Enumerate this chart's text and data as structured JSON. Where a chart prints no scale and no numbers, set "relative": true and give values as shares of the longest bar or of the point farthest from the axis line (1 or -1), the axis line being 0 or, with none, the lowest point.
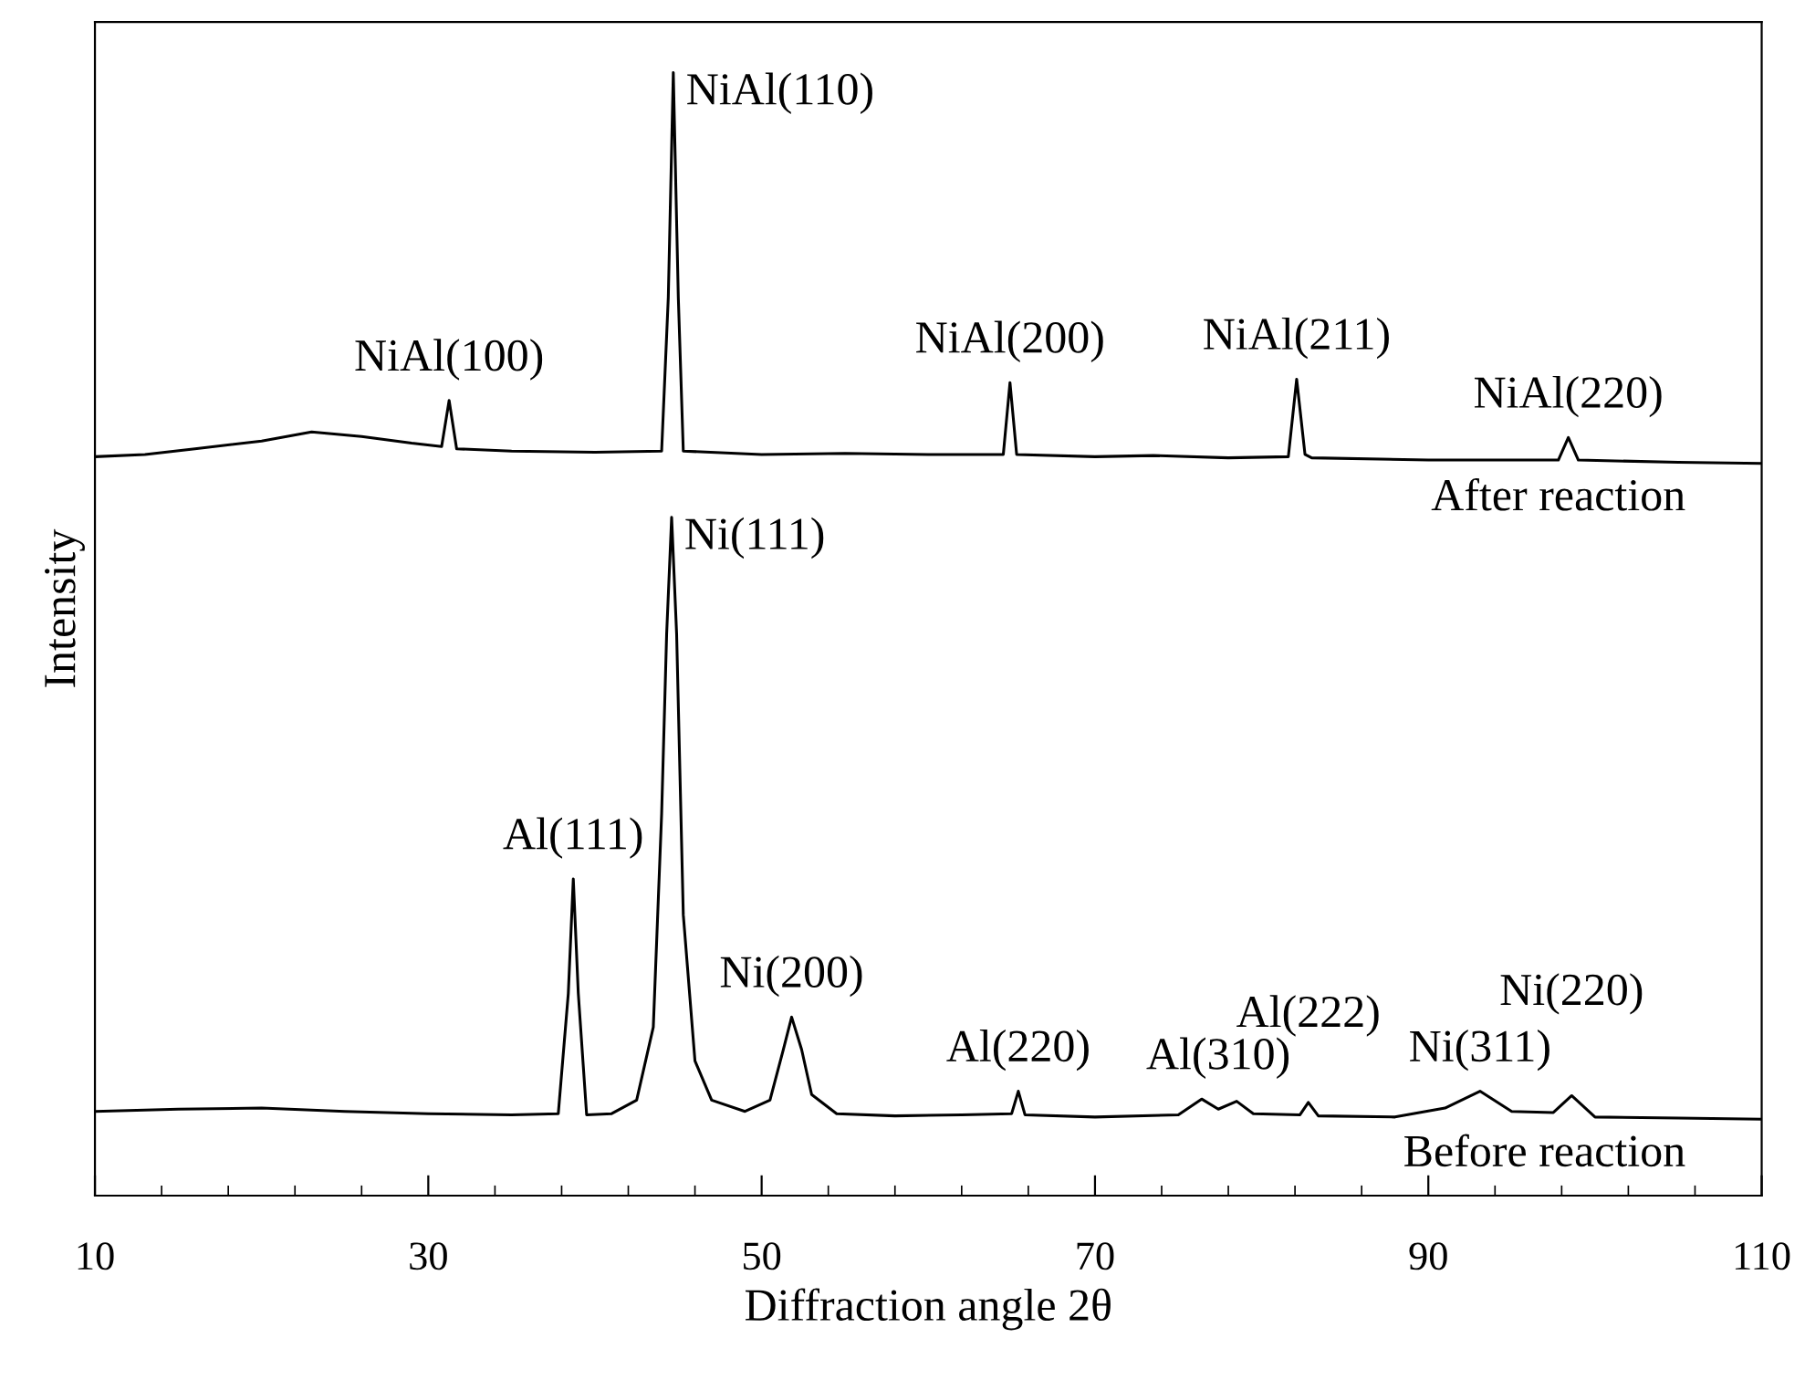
{
  "chart_data": {
    "type": "line",
    "relative": true,
    "xlabel": "Diffraction angle 2θ",
    "ylabel": "Intensity",
    "xlim": [
      10,
      110
    ],
    "xticks": [
      10,
      {
        "value": 14,
        "label": null
      },
      {
        "value": 18,
        "label": null
      },
      {
        "value": 22,
        "label": null
      },
      {
        "value": 26,
        "label": null
      },
      30,
      {
        "value": 34,
        "label": null
      },
      {
        "value": 38,
        "label": null
      },
      {
        "value": 42,
        "label": null
      },
      {
        "value": 46,
        "label": null
      },
      50,
      {
        "value": 54,
        "label": null
      },
      {
        "value": 58,
        "label": null
      },
      {
        "value": 62,
        "label": null
      },
      {
        "value": 66,
        "label": null
      },
      70,
      {
        "value": 74,
        "label": null
      },
      {
        "value": 78,
        "label": null
      },
      {
        "value": 82,
        "label": null
      },
      {
        "value": 86,
        "label": null
      },
      90,
      {
        "value": 94,
        "label": null
      },
      {
        "value": 98,
        "label": null
      },
      {
        "value": 102,
        "label": null
      },
      {
        "value": 106,
        "label": null
      },
      110
    ],
    "tick_labels": "x",
    "grid": false,
    "legend": false,
    "marker": "none",
    "line_style": "solid",
    "series": [
      {
        "name": "After reaction",
        "color": "#000000",
        "x": [
          10,
          13,
          16,
          20,
          23,
          26,
          29,
          30.8,
          31.25,
          31.7,
          35,
          40,
          44.0,
          44.4,
          44.7,
          45.0,
          45.3,
          50,
          55,
          60,
          64.5,
          64.9,
          65.3,
          70,
          73.5,
          78,
          81.6,
          82.1,
          82.6,
          83.0,
          90,
          97.8,
          98.4,
          99.0,
          105,
          110
        ],
        "values": [
          0.658,
          0.66,
          0.665,
          0.672,
          0.68,
          0.676,
          0.67,
          0.667,
          0.708,
          0.665,
          0.663,
          0.662,
          0.663,
          0.8,
          1.0,
          0.8,
          0.663,
          0.66,
          0.661,
          0.66,
          0.66,
          0.724,
          0.66,
          0.658,
          0.659,
          0.657,
          0.658,
          0.727,
          0.66,
          0.657,
          0.655,
          0.655,
          0.675,
          0.655,
          0.653,
          0.652
        ]
      },
      {
        "name": "Before reaction",
        "color": "#000000",
        "x": [
          10,
          15,
          20,
          25,
          30,
          35,
          37.8,
          38.4,
          38.7,
          39.0,
          39.5,
          41,
          42.5,
          43.5,
          44.0,
          44.3,
          44.6,
          44.9,
          45.3,
          46,
          47,
          49,
          50.5,
          51.3,
          51.8,
          52.4,
          53,
          54.5,
          58,
          62,
          65.0,
          65.4,
          65.8,
          70,
          75,
          76.4,
          77.4,
          78.5,
          79.5,
          82.3,
          82.8,
          83.4,
          88,
          91,
          93.1,
          95,
          97.5,
          98.6,
          100,
          105,
          110
        ],
        "values": [
          0.075,
          0.077,
          0.078,
          0.075,
          0.073,
          0.072,
          0.073,
          0.18,
          0.282,
          0.18,
          0.072,
          0.073,
          0.085,
          0.15,
          0.34,
          0.5,
          0.604,
          0.5,
          0.25,
          0.12,
          0.085,
          0.075,
          0.085,
          0.13,
          0.159,
          0.13,
          0.09,
          0.073,
          0.071,
          0.072,
          0.073,
          0.093,
          0.072,
          0.07,
          0.072,
          0.086,
          0.077,
          0.084,
          0.073,
          0.072,
          0.083,
          0.071,
          0.07,
          0.078,
          0.093,
          0.075,
          0.074,
          0.089,
          0.07,
          0.069,
          0.068
        ]
      }
    ],
    "annotations": [
      {
        "text": "NiAl(100)",
        "x": 31.25,
        "y": 0.708
      },
      {
        "text": "NiAl(110)",
        "x": 44.7,
        "y": 1.0
      },
      {
        "text": "NiAl(200)",
        "x": 64.9,
        "y": 0.724
      },
      {
        "text": "NiAl(211)",
        "x": 82.1,
        "y": 0.727
      },
      {
        "text": "NiAl(220)",
        "x": 98.4,
        "y": 0.675
      },
      {
        "text": "Al(111)",
        "x": 38.7,
        "y": 0.282
      },
      {
        "text": "Ni(111)",
        "x": 44.6,
        "y": 0.604
      },
      {
        "text": "Ni(200)",
        "x": 51.8,
        "y": 0.159
      },
      {
        "text": "Al(220)",
        "x": 65.4,
        "y": 0.093
      },
      {
        "text": "Al(310)",
        "x": 77.4,
        "y": 0.086
      },
      {
        "text": "Al(222)",
        "x": 82.8,
        "y": 0.083
      },
      {
        "text": "Ni(311)",
        "x": 93.1,
        "y": 0.093
      },
      {
        "text": "Ni(220)",
        "x": 98.6,
        "y": 0.089
      }
    ]
  }
}
